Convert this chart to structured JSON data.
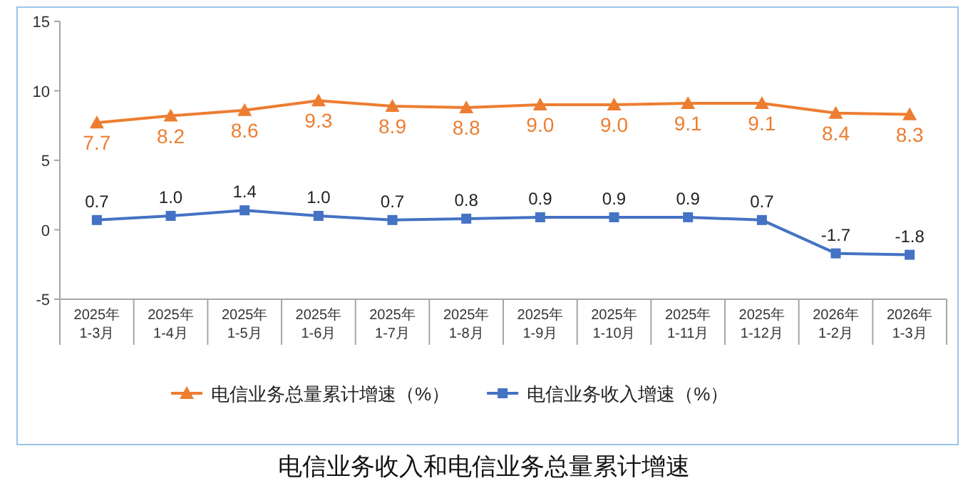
{
  "chart_data": {
    "type": "line",
    "title": "电信业务收入和电信业务总量累计增速",
    "categories": [
      "2025年\n1-3月",
      "2025年\n1-4月",
      "2025年\n1-5月",
      "2025年\n1-6月",
      "2025年\n1-7月",
      "2025年\n1-8月",
      "2025年\n1-9月",
      "2025年\n1-10月",
      "2025年\n1-11月",
      "2025年\n1-12月",
      "2026年\n1-2月",
      "2026年\n1-3月"
    ],
    "series": [
      {
        "name": "电信业务总量累计增速（%）",
        "color": "#ed7d31",
        "marker": "triangle",
        "values": [
          7.7,
          8.2,
          8.6,
          9.3,
          8.9,
          8.8,
          9.0,
          9.0,
          9.1,
          9.1,
          8.4,
          8.3
        ],
        "value_labels": [
          "7.7",
          "8.2",
          "8.6",
          "9.3",
          "8.9",
          "8.8",
          "9.0",
          "9.0",
          "9.1",
          "9.1",
          "8.4",
          "8.3"
        ]
      },
      {
        "name": "电信业务收入增速（%）",
        "color": "#4472c4",
        "marker": "square",
        "values": [
          0.7,
          1.0,
          1.4,
          1.0,
          0.7,
          0.8,
          0.9,
          0.9,
          0.9,
          0.7,
          -1.7,
          -1.8
        ],
        "value_labels": [
          "0.7",
          "1.0",
          "1.4",
          "1.0",
          "0.7",
          "0.8",
          "0.9",
          "0.9",
          "0.9",
          "0.7",
          "-1.7",
          "-1.8"
        ]
      }
    ],
    "ylim": [
      -5,
      15
    ],
    "yticks": [
      -5,
      0,
      5,
      10,
      15
    ],
    "grid": false,
    "legend": "bottom"
  }
}
